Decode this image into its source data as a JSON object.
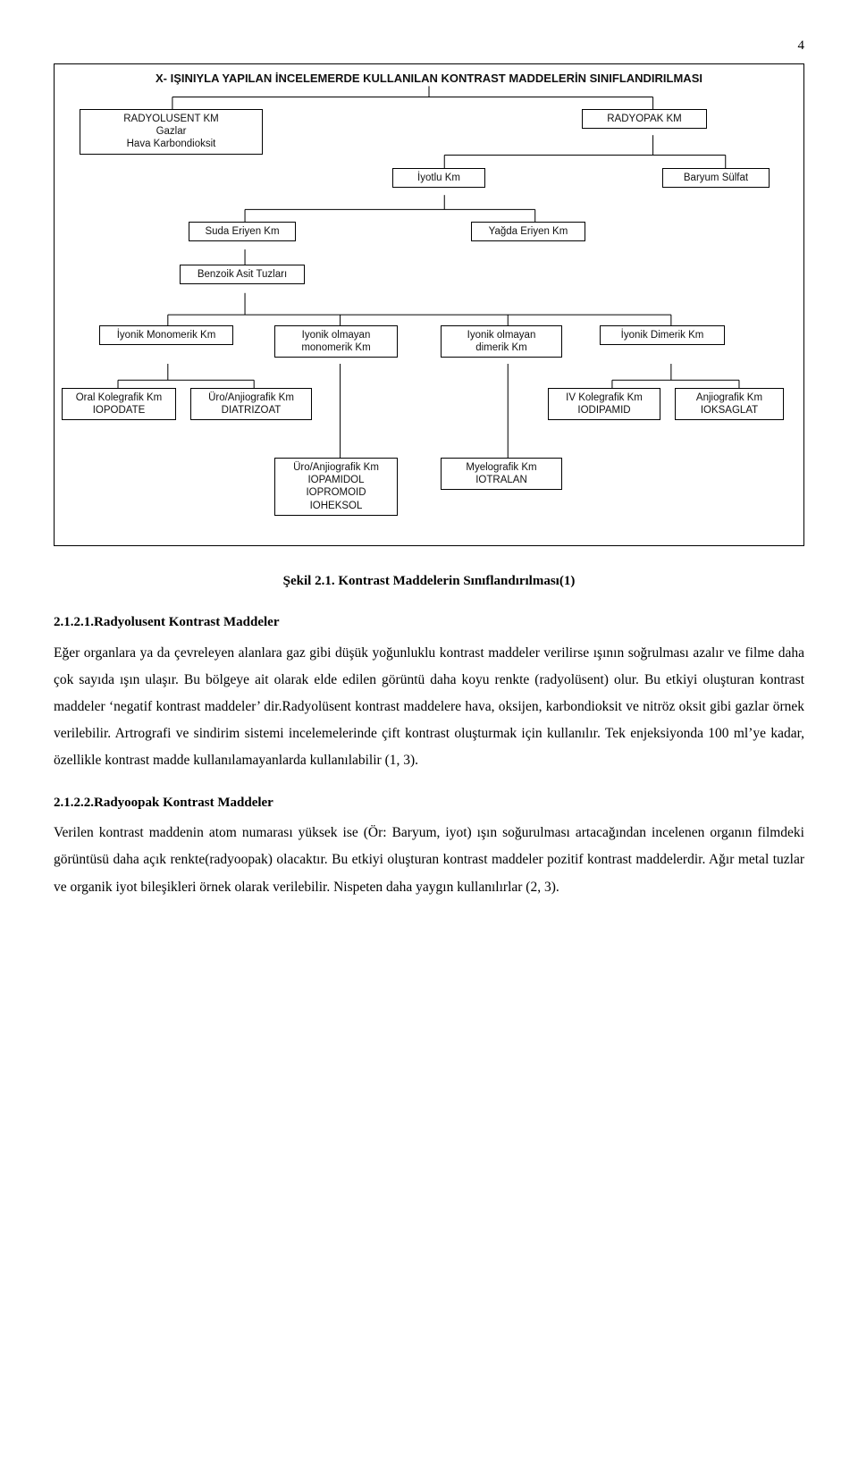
{
  "page_number": "4",
  "diagram": {
    "title": "X- IŞINIYLA YAPILAN İNCELEMERDE KULLANILAN KONTRAST MADDELERİN SINIFLANDIRILMASI",
    "nodes": {
      "n1": "RADYOLUSENT KM\nGazlar\nHava       Karbondioksit",
      "n2": "RADYOPAK KM",
      "n3": "İyotlu Km",
      "n4": "Baryum Sülfat",
      "n5": "Suda Eriyen Km",
      "n6": "Yağda Eriyen Km",
      "n7": "Benzoik Asit Tuzları",
      "n8": "İyonik Monomerik Km",
      "n9": "Iyonik olmayan\nmonomerik Km",
      "n10": "Iyonik olmayan\ndimerik Km",
      "n11": "İyonik Dimerik Km",
      "n12": "Oral Kolegrafik Km\nIOPODATE",
      "n13": "Üro/Anjiografik Km\nDIATRIZOAT",
      "n14": "IV Kolegrafik Km\nIODIPAMID",
      "n15": "Anjiografik Km\nIOKSAGLAT",
      "n16": "Üro/Anjiografik Km\nIOPAMIDOL\nIOPROMOID\nIOHEKSOL",
      "n17": "Myelografik Km\nIOTRALAN"
    }
  },
  "caption": "Şekil 2.1. Kontrast Maddelerin Sınıflandırılması(1)",
  "heading1": "2.1.2.1.Radyolusent Kontrast Maddeler",
  "para1": "Eğer organlara ya da çevreleyen alanlara gaz gibi düşük yoğunluklu kontrast maddeler verilirse ışının soğrulması azalır ve filme daha çok sayıda ışın ulaşır. Bu bölgeye ait olarak elde edilen görüntü daha koyu renkte (radyolüsent) olur. Bu etkiyi oluşturan kontrast maddeler ‘negatif kontrast maddeler’ dir.Radyolüsent kontrast maddelere hava, oksijen, karbondioksit ve nitröz oksit gibi gazlar örnek verilebilir. Artrografi ve sindirim sistemi incelemelerinde çift kontrast oluşturmak için kullanılır. Tek enjeksiyonda 100 ml’ye kadar, özellikle kontrast madde kullanılamayanlarda kullanılabilir (1, 3).",
  "heading2": "2.1.2.2.Radyoopak Kontrast Maddeler",
  "para2": "Verilen kontrast maddenin atom numarası yüksek ise (Ör: Baryum, iyot) ışın soğurulması artacağından incelenen organın filmdeki görüntüsü daha açık renkte(radyoopak) olacaktır. Bu etkiyi oluşturan kontrast maddeler pozitif kontrast maddelerdir. Ağır metal tuzlar ve organik iyot bileşikleri örnek olarak verilebilir. Nispeten daha yaygın kullanılırlar (2, 3)."
}
